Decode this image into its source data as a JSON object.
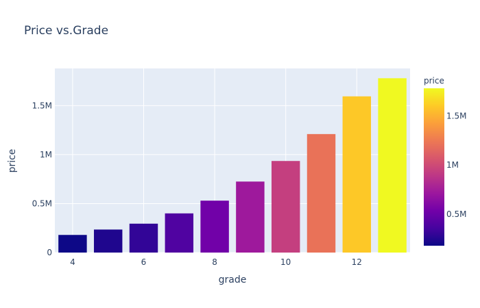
{
  "chart_data": {
    "type": "bar",
    "title": "Price vs.Grade",
    "xlabel": "grade",
    "ylabel": "price",
    "x": [
      4,
      5,
      6,
      7,
      8,
      9,
      10,
      11,
      12,
      13
    ],
    "values": [
      180000,
      235000,
      295000,
      400000,
      530000,
      725000,
      935000,
      1210000,
      1595000,
      1780000
    ],
    "xlim": [
      3.5,
      13.5
    ],
    "ylim": [
      0,
      1880000
    ],
    "x_tick_values": [
      4,
      6,
      8,
      10,
      12
    ],
    "x_tick_labels": [
      "4",
      "6",
      "8",
      "10",
      "12"
    ],
    "y_tick_values": [
      0,
      500000,
      1000000,
      1500000
    ],
    "y_tick_labels": [
      "0",
      "0.5M",
      "1M",
      "1.5M"
    ],
    "grid": true,
    "plot_background": "#e5ecf6",
    "colorscale": "plasma",
    "colorscale_stops": [
      "#0d0887",
      "#46039f",
      "#7201a8",
      "#9c179e",
      "#bd3786",
      "#d8576b",
      "#ed7953",
      "#fb9f3a",
      "#fdca26",
      "#f0f921"
    ],
    "colorbar": {
      "title": "price",
      "min": 180000,
      "max": 1780000,
      "tick_values": [
        500000,
        1000000,
        1500000
      ],
      "tick_labels": [
        "0.5M",
        "1M",
        "1.5M"
      ]
    }
  }
}
